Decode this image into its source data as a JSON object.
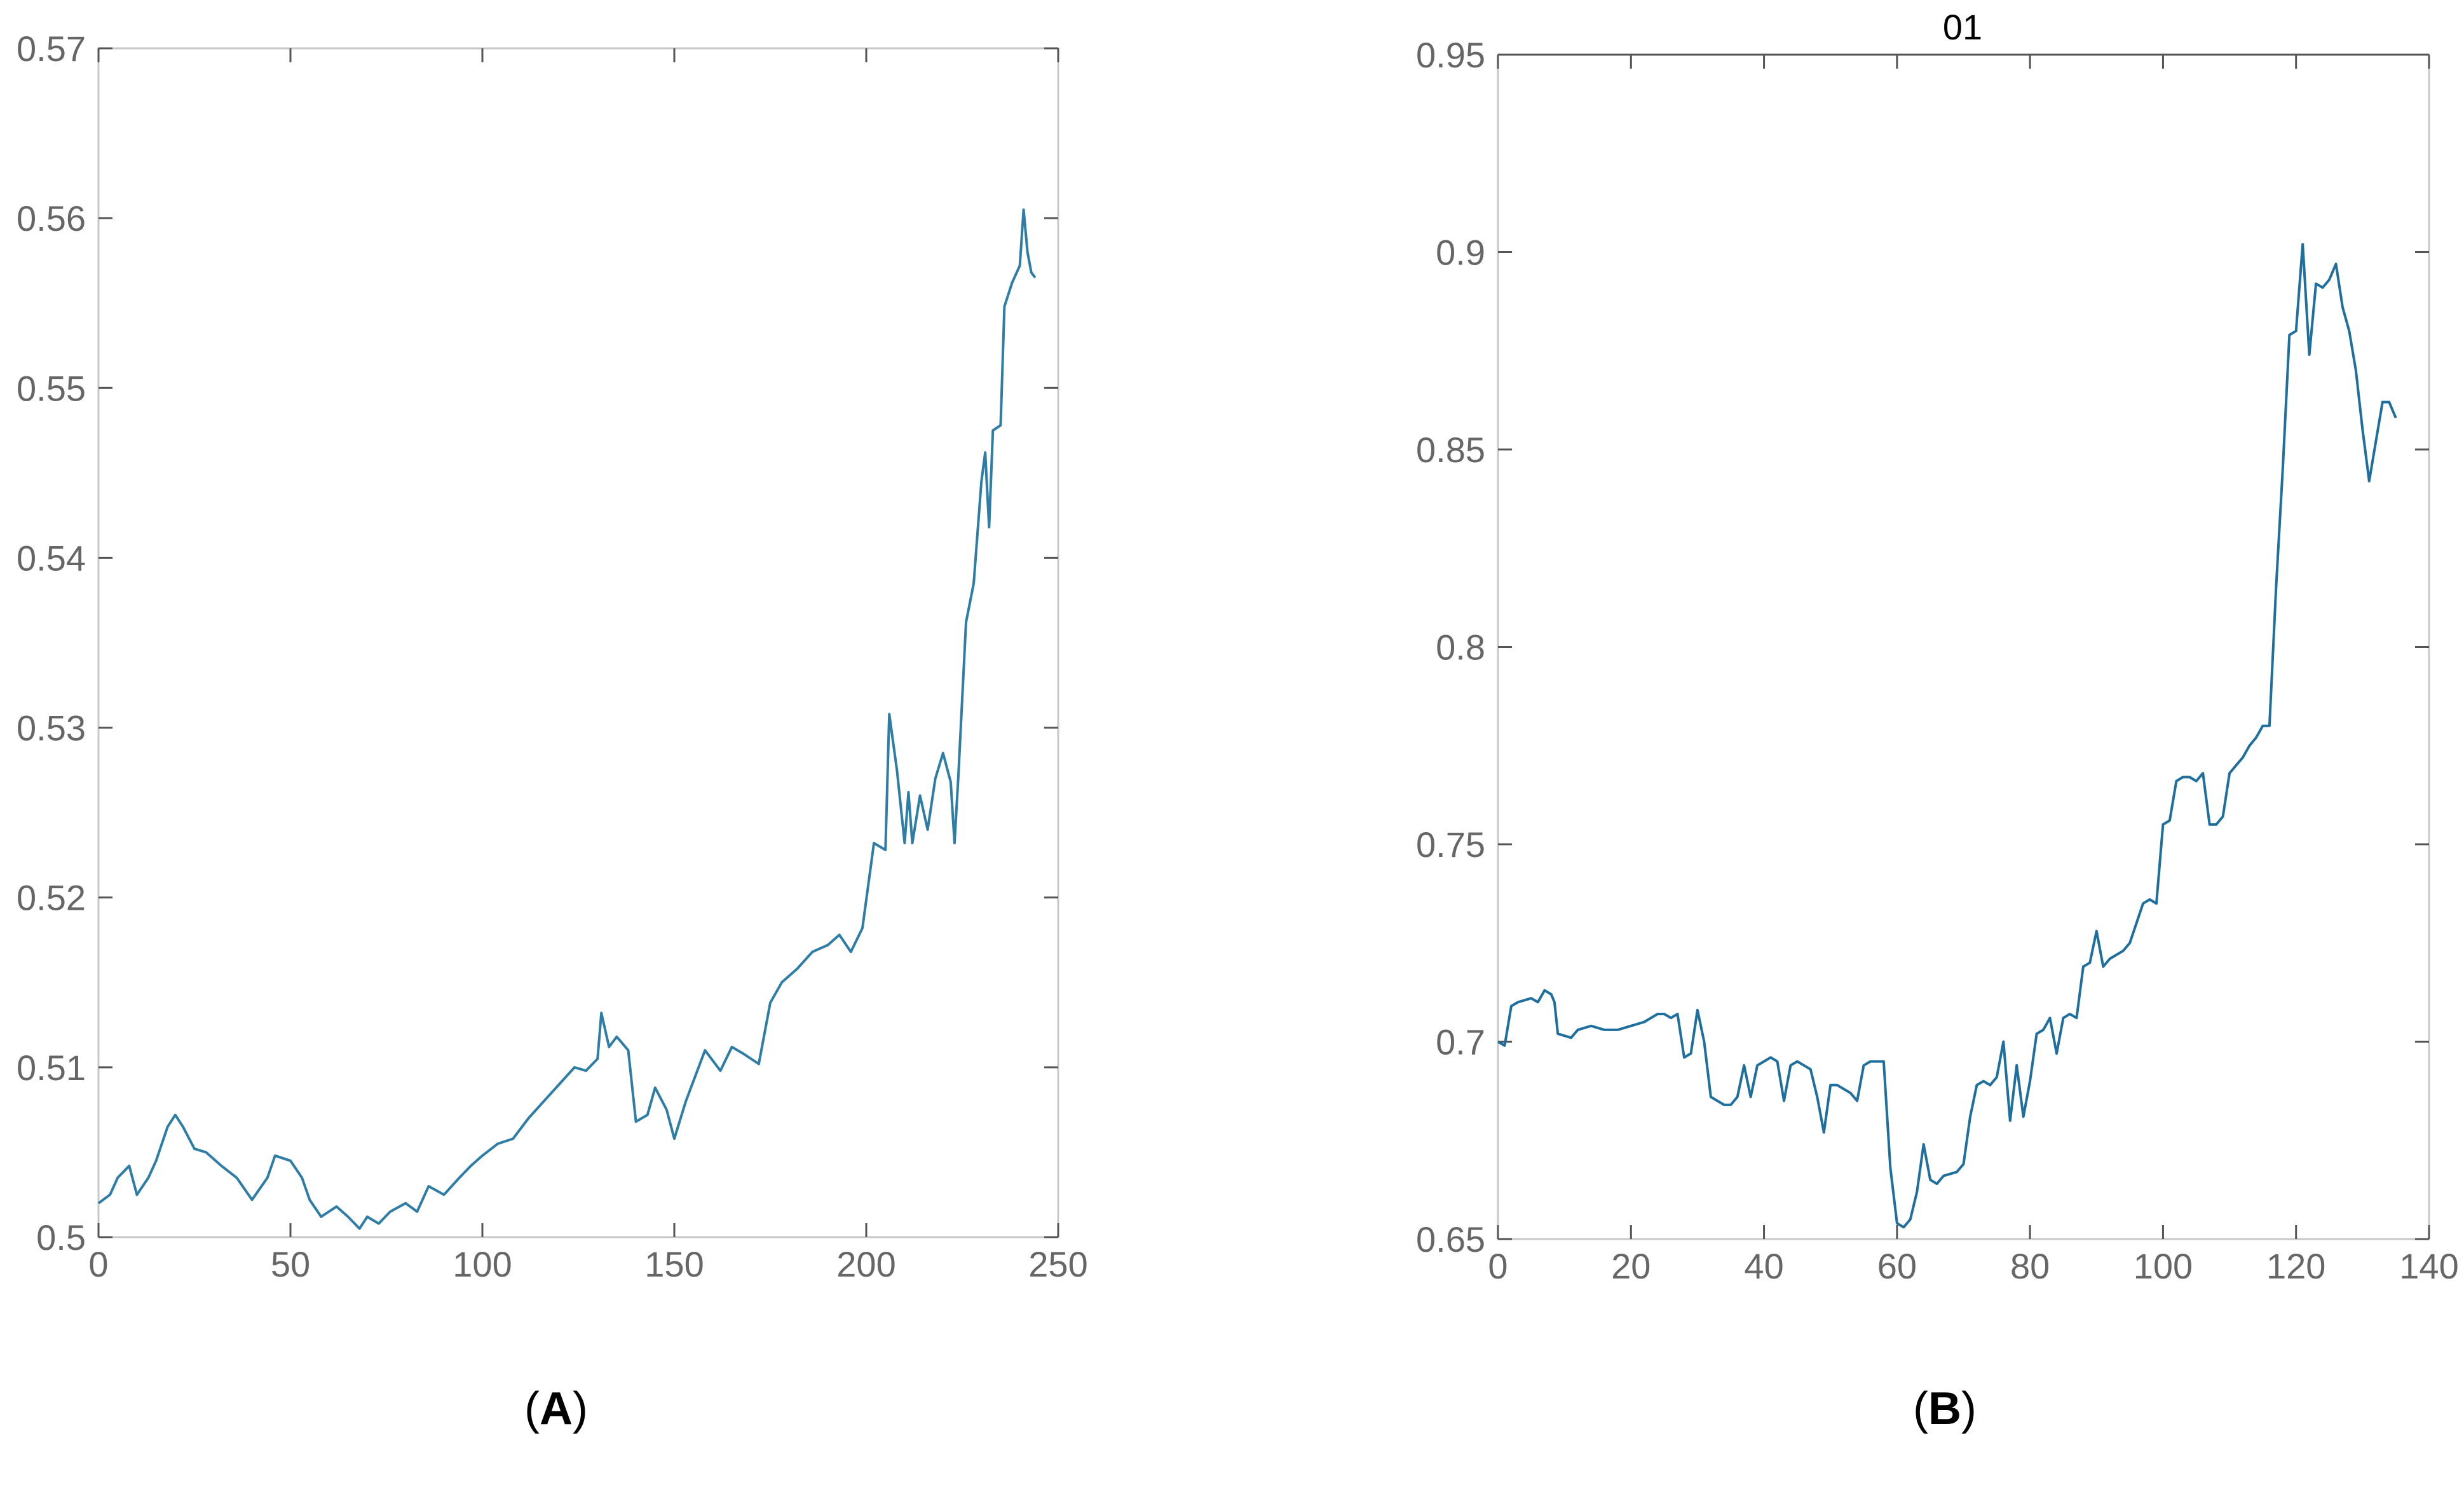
{
  "chart_data": [
    {
      "panel_label": "A",
      "type": "line",
      "title": "",
      "xlabel": "",
      "ylabel": "",
      "xlim": [
        0,
        250
      ],
      "ylim": [
        0.5,
        0.57
      ],
      "x_ticks": [
        0,
        50,
        100,
        150,
        200,
        250
      ],
      "x_tick_labels": [
        "0",
        "50",
        "100",
        "150",
        "200",
        "250"
      ],
      "y_ticks": [
        0.5,
        0.51,
        0.52,
        0.53,
        0.54,
        0.55,
        0.56,
        0.57
      ],
      "y_tick_labels": [
        "0.5",
        "0.51",
        "0.52",
        "0.53",
        "0.54",
        "0.55",
        "0.56",
        "0.57"
      ],
      "grid": false,
      "line_color": "#2E7DA6",
      "series": [
        {
          "x": [
            0,
            3,
            5,
            8,
            10,
            13,
            15,
            18,
            20,
            22,
            25,
            28,
            32,
            36,
            40,
            44,
            46,
            50,
            53,
            55,
            58,
            62,
            65,
            68,
            70,
            73,
            76,
            80,
            83,
            86,
            90,
            94,
            97,
            100,
            104,
            108,
            112,
            116,
            120,
            124,
            127,
            130,
            131,
            133,
            135,
            138,
            140,
            143,
            145,
            148,
            150,
            153,
            156,
            158,
            162,
            165,
            168,
            172,
            175,
            178,
            182,
            186,
            190,
            193,
            196,
            199,
            202,
            205,
            206,
            208,
            210,
            211,
            212,
            214,
            216,
            218,
            220,
            222,
            223,
            224,
            226,
            228,
            230,
            231,
            232,
            233,
            235,
            236,
            238,
            240,
            241,
            242,
            243,
            244
          ],
          "y": [
            0.502,
            0.5025,
            0.5035,
            0.5042,
            0.5025,
            0.5035,
            0.5045,
            0.5065,
            0.5072,
            0.5065,
            0.5052,
            0.505,
            0.5042,
            0.5035,
            0.5022,
            0.5035,
            0.5048,
            0.5045,
            0.5035,
            0.5022,
            0.5012,
            0.5018,
            0.5012,
            0.5005,
            0.5012,
            0.5008,
            0.5015,
            0.502,
            0.5015,
            0.503,
            0.5025,
            0.5035,
            0.5042,
            0.5048,
            0.5055,
            0.5058,
            0.507,
            0.508,
            0.509,
            0.51,
            0.5098,
            0.5105,
            0.5132,
            0.5112,
            0.5118,
            0.511,
            0.5068,
            0.5072,
            0.5088,
            0.5075,
            0.5058,
            0.508,
            0.5098,
            0.511,
            0.5098,
            0.5112,
            0.5108,
            0.5102,
            0.5138,
            0.515,
            0.5158,
            0.5168,
            0.5172,
            0.5178,
            0.5168,
            0.5182,
            0.5232,
            0.5228,
            0.5308,
            0.5275,
            0.5232,
            0.5262,
            0.5232,
            0.526,
            0.524,
            0.527,
            0.5285,
            0.5268,
            0.5232,
            0.5272,
            0.5362,
            0.5385,
            0.5445,
            0.5462,
            0.5418,
            0.5475,
            0.5478,
            0.5548,
            0.5562,
            0.5572,
            0.5605,
            0.558,
            0.5568,
            0.5565
          ]
        }
      ]
    },
    {
      "panel_label": "B",
      "type": "line",
      "title": "01",
      "xlabel": "",
      "ylabel": "",
      "xlim": [
        0,
        140
      ],
      "ylim": [
        0.65,
        0.95
      ],
      "x_ticks": [
        0,
        20,
        40,
        60,
        80,
        100,
        120,
        140
      ],
      "x_tick_labels": [
        "0",
        "20",
        "40",
        "60",
        "80",
        "100",
        "120",
        "140"
      ],
      "y_ticks": [
        0.65,
        0.7,
        0.75,
        0.8,
        0.85,
        0.9,
        0.95
      ],
      "y_tick_labels": [
        "0.65",
        "0.7",
        "0.75",
        "0.8",
        "0.85",
        "0.9",
        "0.95"
      ],
      "grid": false,
      "line_color": "#1F6F9E",
      "series": [
        {
          "x": [
            0,
            1,
            2,
            3,
            5,
            6,
            7,
            8,
            8.5,
            9,
            11,
            12,
            14,
            16,
            18,
            20,
            22,
            24,
            25,
            26,
            27,
            28,
            29,
            30,
            31,
            32,
            33,
            34,
            35,
            36,
            37,
            38,
            39,
            40,
            41,
            42,
            43,
            44,
            45,
            46,
            47,
            48,
            49,
            50,
            51,
            52,
            53,
            54,
            55,
            56,
            58,
            59,
            60,
            61,
            62,
            63,
            64,
            65,
            66,
            67,
            69,
            70,
            71,
            72,
            73,
            74,
            75,
            76,
            77,
            78,
            79,
            80,
            81,
            82,
            83,
            84,
            85,
            86,
            87,
            88,
            89,
            90,
            91,
            92,
            93,
            94,
            95,
            96,
            97,
            98,
            99,
            100,
            101,
            102,
            103,
            104,
            105,
            106,
            107,
            108,
            109,
            110,
            111,
            112,
            113,
            114,
            115,
            116,
            117,
            118,
            119,
            120,
            121,
            122,
            123,
            124,
            125,
            126,
            127,
            128,
            129,
            130,
            131,
            132,
            133,
            134,
            135
          ],
          "y": [
            0.7,
            0.699,
            0.709,
            0.71,
            0.711,
            0.71,
            0.713,
            0.712,
            0.71,
            0.702,
            0.701,
            0.703,
            0.704,
            0.703,
            0.703,
            0.704,
            0.705,
            0.707,
            0.707,
            0.706,
            0.707,
            0.696,
            0.697,
            0.708,
            0.7,
            0.686,
            0.685,
            0.684,
            0.684,
            0.686,
            0.694,
            0.686,
            0.694,
            0.695,
            0.696,
            0.695,
            0.685,
            0.694,
            0.695,
            0.694,
            0.693,
            0.686,
            0.677,
            0.689,
            0.689,
            0.688,
            0.687,
            0.685,
            0.694,
            0.695,
            0.695,
            0.668,
            0.654,
            0.653,
            0.655,
            0.662,
            0.674,
            0.665,
            0.664,
            0.666,
            0.667,
            0.669,
            0.681,
            0.689,
            0.69,
            0.689,
            0.691,
            0.7,
            0.68,
            0.694,
            0.681,
            0.69,
            0.702,
            0.703,
            0.706,
            0.697,
            0.706,
            0.707,
            0.706,
            0.719,
            0.72,
            0.728,
            0.719,
            0.721,
            0.722,
            0.723,
            0.725,
            0.73,
            0.735,
            0.736,
            0.735,
            0.755,
            0.756,
            0.766,
            0.767,
            0.767,
            0.766,
            0.768,
            0.755,
            0.755,
            0.757,
            0.768,
            0.77,
            0.772,
            0.775,
            0.777,
            0.78,
            0.78,
            0.815,
            0.845,
            0.879,
            0.88,
            0.902,
            0.874,
            0.892,
            0.891,
            0.893,
            0.897,
            0.886,
            0.88,
            0.87,
            0.855,
            0.842,
            0.852,
            0.862,
            0.862,
            0.858
          ]
        }
      ]
    }
  ]
}
